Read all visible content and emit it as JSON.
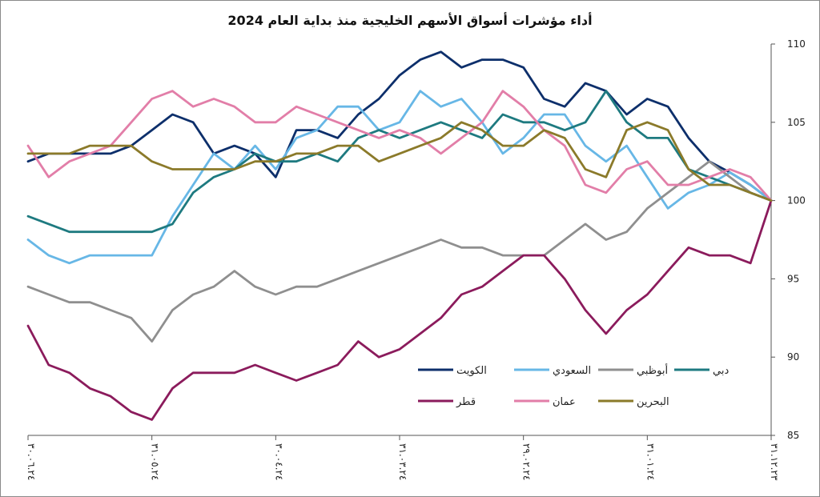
{
  "chart_data": {
    "type": "line",
    "title": "أداء مؤشرات أسواق الأسهم الخليجية منذ بداية العام 2024",
    "ylim": [
      85,
      110
    ],
    "y_ticks": [
      85,
      90,
      95,
      100,
      105,
      110
    ],
    "y_axis_side": "right",
    "x_order": "right-to-left",
    "x_tick_labels": [
      "٣١.١٢.٢٣",
      "٣١.٠١.٢٤",
      "٢٩.٠٢.٢٤",
      "٣١.٠٣.٢٤",
      "٣٠.٠٤.٢٤",
      "٣١.٠٥.٢٤",
      "٣٠.٠٦.٢٤"
    ],
    "grid": false,
    "legend_position": "inside-bottom",
    "series": [
      {
        "name": "الكويت",
        "color": "#0d2f6b",
        "values": [
          100.0,
          101.0,
          101.8,
          102.5,
          104.0,
          106.0,
          106.5,
          105.5,
          107.0,
          107.5,
          106.0,
          106.5,
          108.5,
          109.0,
          109.0,
          108.5,
          109.5,
          109.0,
          108.0,
          106.5,
          105.5,
          104.0,
          104.5,
          104.5,
          101.5,
          103.0,
          103.5,
          103.0,
          105.0,
          105.5,
          104.5,
          103.5,
          103.0,
          103.0,
          103.0,
          103.0,
          102.5
        ]
      },
      {
        "name": "السعودي",
        "color": "#67b7e6",
        "values": [
          100.0,
          101.0,
          101.8,
          101.0,
          100.5,
          99.5,
          101.5,
          103.5,
          102.5,
          103.5,
          105.5,
          105.5,
          104.0,
          103.0,
          105.0,
          106.5,
          106.0,
          107.0,
          105.0,
          104.5,
          106.0,
          106.0,
          104.5,
          104.0,
          102.0,
          103.5,
          102.0,
          103.0,
          101.0,
          99.0,
          96.5,
          96.5,
          96.5,
          96.5,
          96.0,
          96.5,
          97.5
        ]
      },
      {
        "name": "أبوظبي",
        "color": "#8f8f8f",
        "values": [
          100.0,
          100.5,
          101.5,
          102.5,
          101.5,
          100.5,
          99.5,
          98.0,
          97.5,
          98.5,
          97.5,
          96.5,
          96.5,
          96.5,
          97.0,
          97.0,
          97.5,
          97.0,
          96.5,
          96.0,
          95.5,
          95.0,
          94.5,
          94.5,
          94.0,
          94.5,
          95.5,
          94.5,
          94.0,
          93.0,
          91.0,
          92.5,
          93.0,
          93.5,
          93.5,
          94.0,
          94.5
        ]
      },
      {
        "name": "دبي",
        "color": "#1e7a80",
        "values": [
          100.0,
          100.5,
          101.0,
          101.5,
          102.0,
          104.0,
          104.0,
          105.0,
          107.0,
          105.0,
          104.5,
          105.0,
          105.0,
          105.5,
          104.0,
          104.5,
          105.0,
          104.5,
          104.0,
          104.5,
          104.0,
          102.5,
          103.0,
          102.5,
          102.5,
          103.0,
          102.0,
          101.5,
          100.5,
          98.5,
          98.0,
          98.0,
          98.0,
          98.0,
          98.0,
          98.5,
          99.0
        ]
      },
      {
        "name": "قطر",
        "color": "#8b1b5c",
        "values": [
          100.0,
          96.0,
          96.5,
          96.5,
          97.0,
          95.5,
          94.0,
          93.0,
          91.5,
          93.0,
          95.0,
          96.5,
          96.5,
          95.5,
          94.5,
          94.0,
          92.5,
          91.5,
          90.5,
          90.0,
          91.0,
          89.5,
          89.0,
          88.5,
          89.0,
          89.5,
          89.0,
          89.0,
          89.0,
          88.0,
          86.0,
          86.5,
          87.5,
          88.0,
          89.0,
          89.5,
          92.0
        ]
      },
      {
        "name": "عمان",
        "color": "#e27ea8",
        "values": [
          100.0,
          101.5,
          102.0,
          101.5,
          101.0,
          101.0,
          102.5,
          102.0,
          100.5,
          101.0,
          103.5,
          104.5,
          106.0,
          107.0,
          105.0,
          104.0,
          103.0,
          104.0,
          104.5,
          104.0,
          104.5,
          105.0,
          105.5,
          106.0,
          105.0,
          105.0,
          106.0,
          106.5,
          106.0,
          107.0,
          106.5,
          105.0,
          103.5,
          103.0,
          102.5,
          101.5,
          103.5
        ]
      },
      {
        "name": "البحرين",
        "color": "#8b7a2a",
        "values": [
          100.0,
          100.5,
          101.0,
          101.0,
          102.0,
          104.5,
          105.0,
          104.5,
          101.5,
          102.0,
          104.0,
          104.5,
          103.5,
          103.5,
          104.5,
          105.0,
          104.0,
          103.5,
          103.0,
          102.5,
          103.5,
          103.5,
          103.0,
          103.0,
          102.5,
          102.5,
          102.0,
          102.0,
          102.0,
          102.0,
          102.5,
          103.5,
          103.5,
          103.5,
          103.0,
          103.0,
          103.0
        ]
      }
    ]
  }
}
